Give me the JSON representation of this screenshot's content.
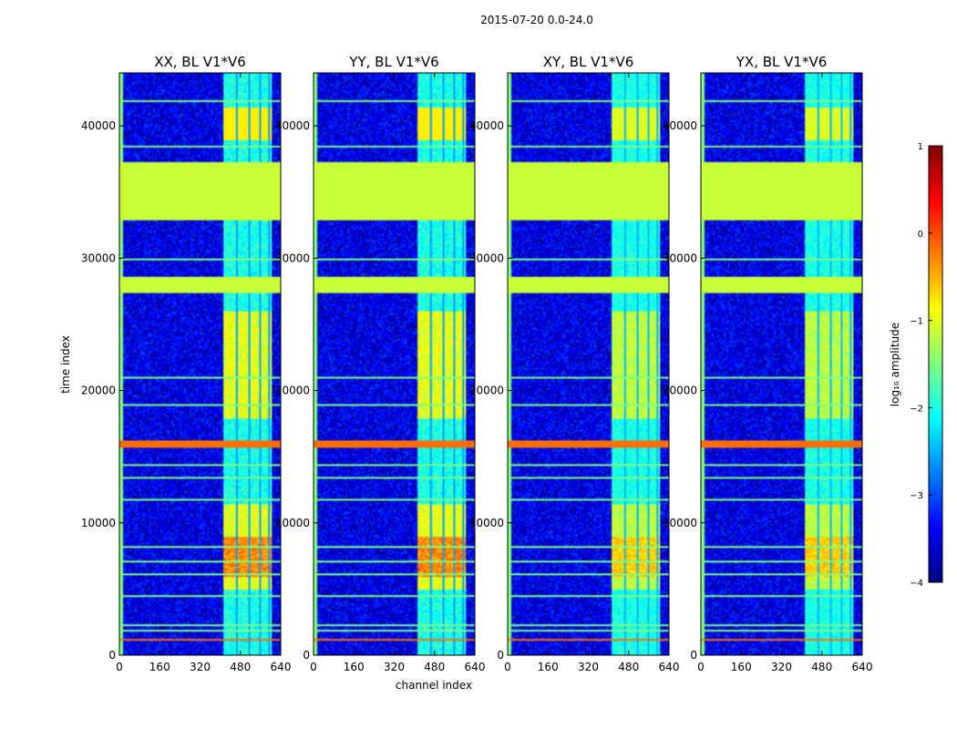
{
  "chart_data": {
    "type": "heatmap",
    "title": "2015-07-20 0.0-24.0",
    "xlabel": "channel index",
    "ylabel": "time index",
    "xlim": [
      0,
      640
    ],
    "ylim": [
      0,
      44000
    ],
    "x_ticks": [
      "0",
      "160",
      "320",
      "480",
      "640"
    ],
    "y_ticks": [
      "0",
      "10000",
      "20000",
      "30000",
      "40000"
    ],
    "y_tick_values": [
      0,
      10000,
      20000,
      30000,
      40000
    ],
    "x_tick_values": [
      0,
      160,
      320,
      480,
      640
    ],
    "panels": [
      {
        "title": "XX, BL V1*V6",
        "variant": "XX"
      },
      {
        "title": "YY, BL V1*V6",
        "variant": "YY"
      },
      {
        "title": "XY, BL V1*V6",
        "variant": "XY"
      },
      {
        "title": "YX, BL V1*V6",
        "variant": "YX"
      }
    ],
    "flagged_time_ranges": [
      [
        33000,
        37300
      ],
      [
        27500,
        28600
      ]
    ],
    "signal_channel_range": [
      410,
      600
    ],
    "colorbar": {
      "label": "log₁₀ amplitude",
      "range": [
        -4,
        1
      ],
      "ticks": [
        "1",
        "0",
        "−1",
        "−2",
        "−3",
        "−4"
      ],
      "tick_values": [
        1,
        0,
        -1,
        -2,
        -3,
        -4
      ],
      "colormap": [
        "#00007f",
        "#0000ff",
        "#007fff",
        "#00ffff",
        "#7fff7f",
        "#ffff00",
        "#ff7f00",
        "#ff0000",
        "#7f0000"
      ]
    }
  }
}
